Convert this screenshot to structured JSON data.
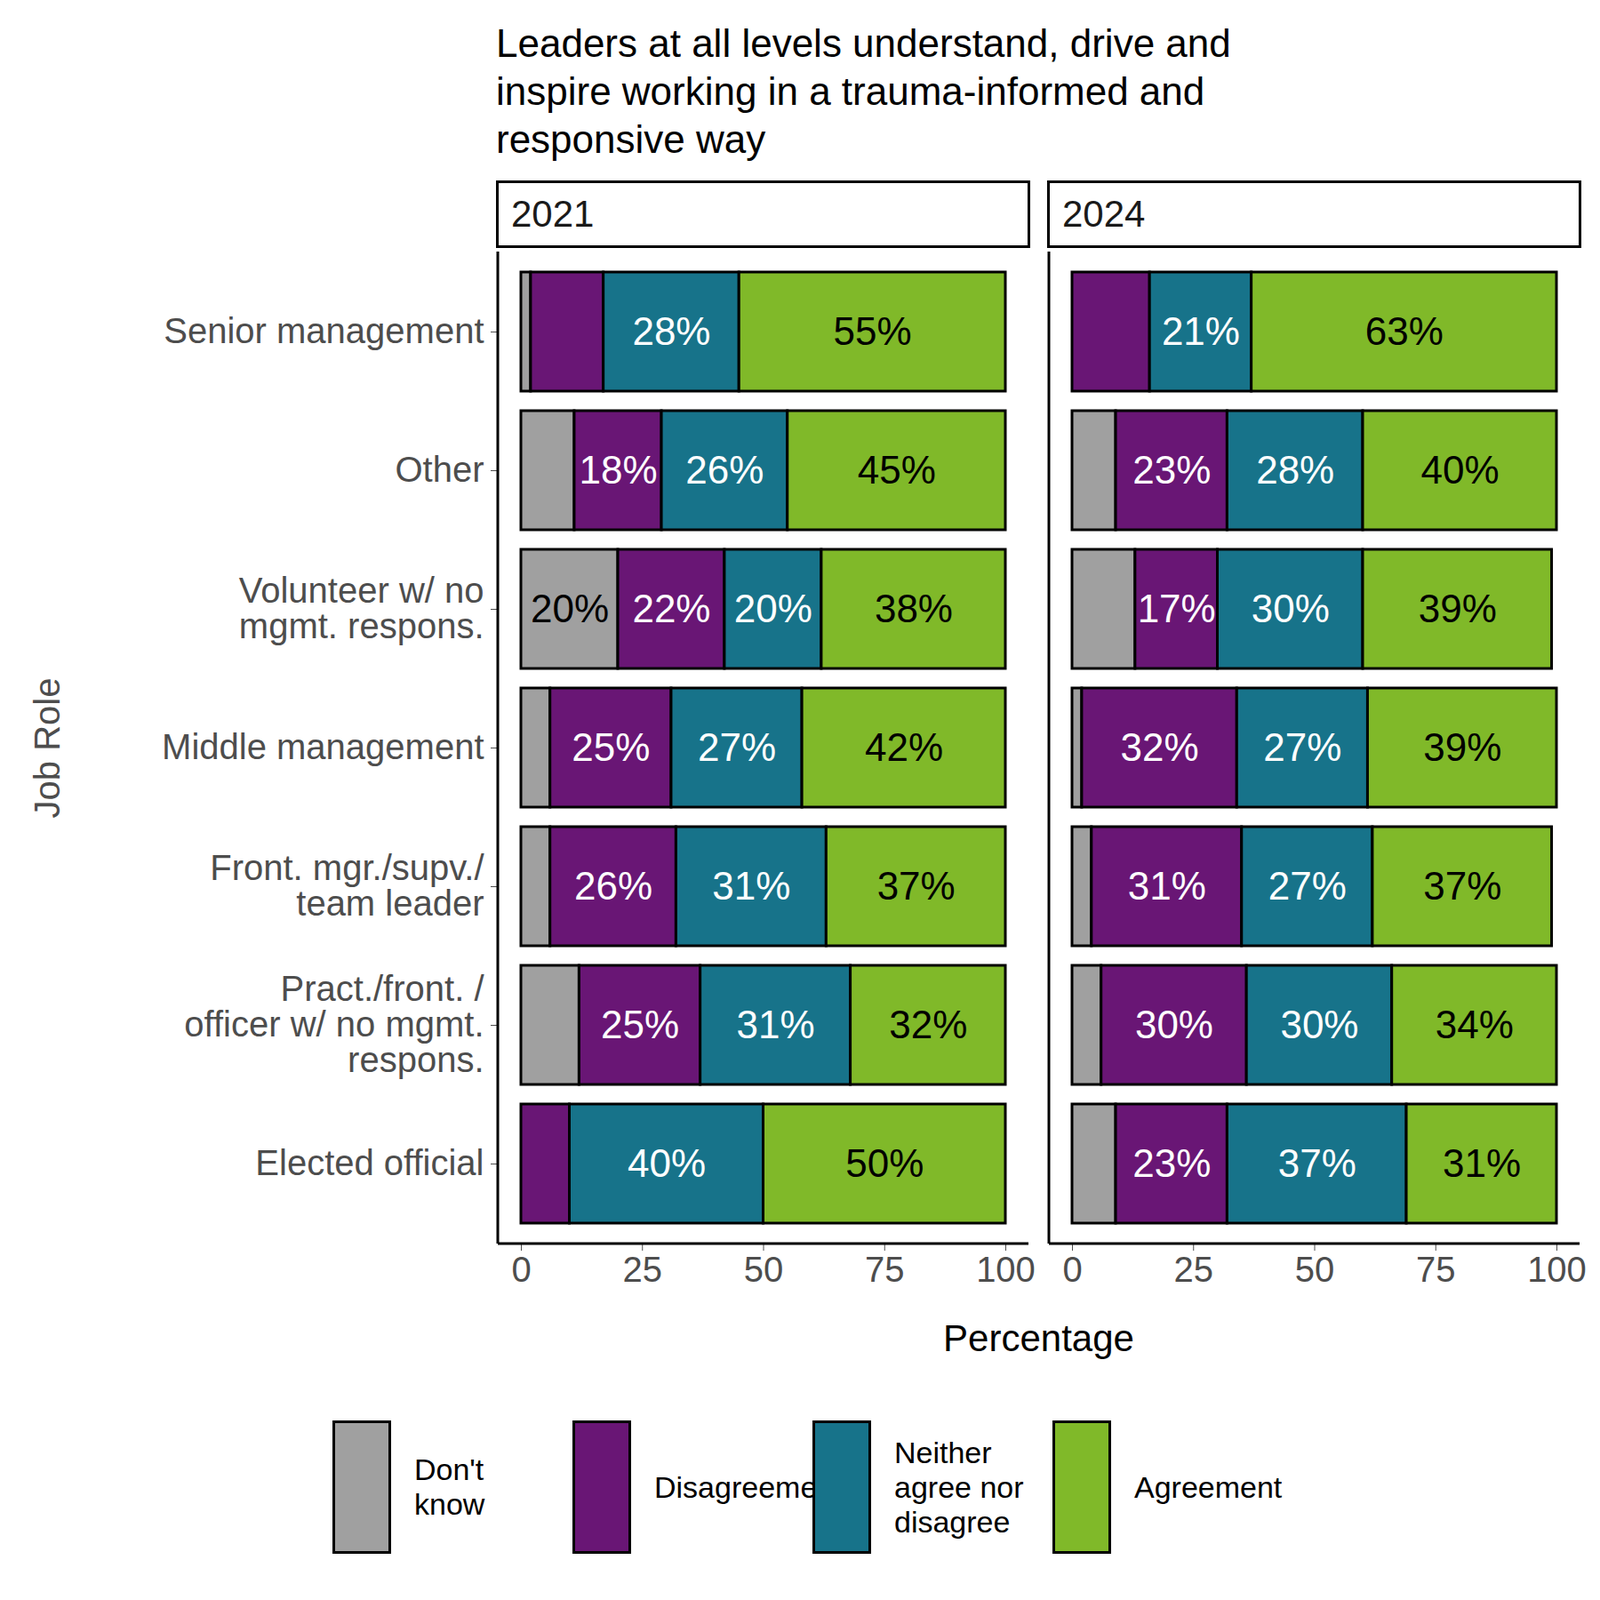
{
  "title": "Leaders at all levels understand, drive and inspire working in a trauma-informed and responsive way",
  "xlabel": "Percentage",
  "ylabel": "Job Role",
  "chart_data": [
    {
      "type": "bar",
      "title": "2021",
      "orientation": "horizontal",
      "stacked": true,
      "data_labels": true,
      "categories": [
        "Senior management",
        "Other",
        "Volunteer w/ no\nmgmt. respons.",
        "Middle management",
        "Front. mgr./supv./\nteam leader",
        "Pract./front. /\nofficer w/ no mgmt.\nrespons.",
        "Elected official"
      ],
      "xlim": [
        0,
        100
      ],
      "xticks": [
        0,
        25,
        50,
        75,
        100
      ],
      "series": [
        {
          "name": "Don't know",
          "color": "#A0A0A0",
          "values": [
            2,
            11,
            20,
            6,
            6,
            12,
            0
          ],
          "value_labels": [
            null,
            null,
            "20%",
            null,
            null,
            null,
            null
          ]
        },
        {
          "name": "Disagreement",
          "color": "#691675",
          "values": [
            15,
            18,
            22,
            25,
            26,
            25,
            10
          ],
          "value_labels": [
            null,
            "18%",
            "22%",
            "25%",
            "26%",
            "25%",
            null
          ]
        },
        {
          "name": "Neither agree nor disagree",
          "color": "#17738A",
          "values": [
            28,
            26,
            20,
            27,
            31,
            31,
            40
          ],
          "value_labels": [
            "28%",
            "26%",
            "20%",
            "27%",
            "31%",
            "31%",
            "40%"
          ]
        },
        {
          "name": "Agreement",
          "color": "#80B929",
          "values": [
            55,
            45,
            38,
            42,
            37,
            32,
            50
          ],
          "value_labels": [
            "55%",
            "45%",
            "38%",
            "42%",
            "37%",
            "32%",
            "50%"
          ]
        }
      ]
    },
    {
      "type": "bar",
      "title": "2024",
      "orientation": "horizontal",
      "stacked": true,
      "data_labels": true,
      "categories": [
        "Senior management",
        "Other",
        "Volunteer w/ no\nmgmt. respons.",
        "Middle management",
        "Front. mgr./supv./\nteam leader",
        "Pract./front. /\nofficer w/ no mgmt.\nrespons.",
        "Elected official"
      ],
      "xlim": [
        0,
        100
      ],
      "xticks": [
        0,
        25,
        50,
        75,
        100
      ],
      "series": [
        {
          "name": "Don't know",
          "color": "#A0A0A0",
          "values": [
            0,
            9,
            13,
            2,
            4,
            6,
            9
          ],
          "value_labels": [
            null,
            null,
            null,
            null,
            null,
            null,
            null
          ]
        },
        {
          "name": "Disagreement",
          "color": "#691675",
          "values": [
            16,
            23,
            17,
            32,
            31,
            30,
            23
          ],
          "value_labels": [
            null,
            "23%",
            "17%",
            "32%",
            "31%",
            "30%",
            "23%"
          ]
        },
        {
          "name": "Neither agree nor disagree",
          "color": "#17738A",
          "values": [
            21,
            28,
            30,
            27,
            27,
            30,
            37
          ],
          "value_labels": [
            "21%",
            "28%",
            "30%",
            "27%",
            "27%",
            "30%",
            "37%"
          ]
        },
        {
          "name": "Agreement",
          "color": "#80B929",
          "values": [
            63,
            40,
            39,
            39,
            37,
            34,
            31
          ],
          "value_labels": [
            "63%",
            "40%",
            "39%",
            "39%",
            "37%",
            "34%",
            "31%"
          ]
        }
      ]
    }
  ]
}
